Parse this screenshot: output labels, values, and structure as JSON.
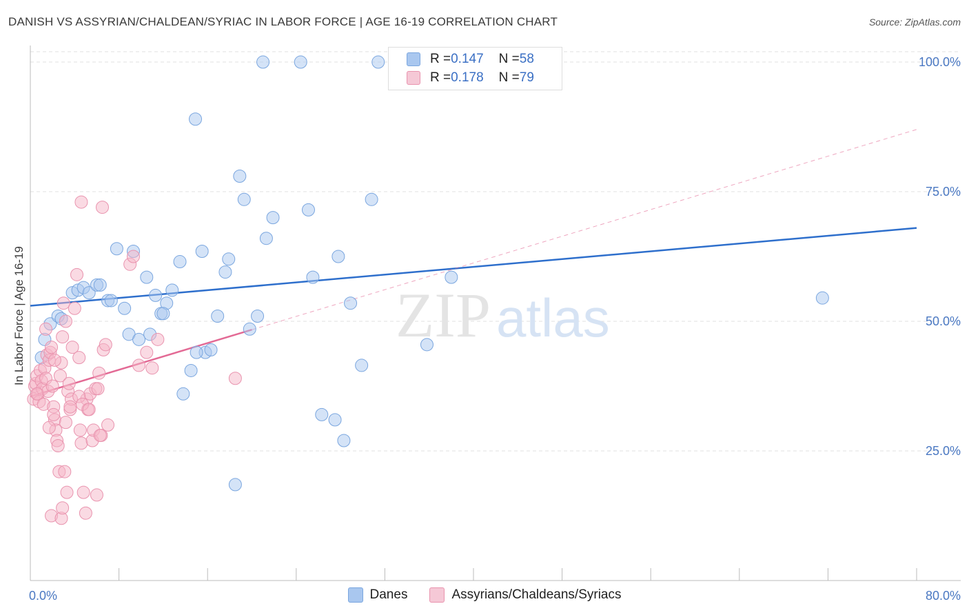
{
  "header": {
    "title": "DANISH VS ASSYRIAN/CHALDEAN/SYRIAC IN LABOR FORCE | AGE 16-19 CORRELATION CHART",
    "source": "Source: ZipAtlas.com"
  },
  "watermark": {
    "zip": "ZIP",
    "atlas": "atlas"
  },
  "legend_top": [
    {
      "r_label": "R = ",
      "r_value": "0.147",
      "n_label": "N = ",
      "n_value": "58",
      "color": "#a9c7ef"
    },
    {
      "r_label": "R = ",
      "r_value": "0.178",
      "n_label": "N = ",
      "n_value": "79",
      "color": "#f5b5c8"
    }
  ],
  "chart_data": {
    "type": "scatter",
    "title": "DANISH VS ASSYRIAN/CHALDEAN/SYRIAC IN LABOR FORCE | AGE 16-19 CORRELATION CHART",
    "xlabel": "",
    "ylabel": "In Labor Force | Age 16-19",
    "xlim": [
      0,
      80
    ],
    "ylim": [
      0,
      102
    ],
    "x_tick_labels": [
      "0.0%",
      "80.0%"
    ],
    "y_ticks": [
      25,
      50,
      75,
      100
    ],
    "y_tick_labels": [
      "25.0%",
      "50.0%",
      "75.0%",
      "100.0%"
    ],
    "grid": true,
    "legend_position": "top-center",
    "series": [
      {
        "name": "Danes",
        "color": "#a9c7ef",
        "stroke": "#7aa6df",
        "line_color": "#2e6fcc",
        "trend": {
          "x": [
            0,
            80
          ],
          "y": [
            53.0,
            68.0
          ],
          "dashed_extension": false
        },
        "points": [
          [
            1.0,
            43.0
          ],
          [
            1.3,
            46.5
          ],
          [
            1.8,
            49.5
          ],
          [
            2.5,
            51.0
          ],
          [
            2.8,
            50.5
          ],
          [
            3.8,
            55.5
          ],
          [
            4.3,
            56.0
          ],
          [
            4.8,
            56.5
          ],
          [
            5.3,
            55.5
          ],
          [
            6.0,
            57.0
          ],
          [
            6.3,
            57.0
          ],
          [
            7.0,
            54.0
          ],
          [
            7.3,
            54.0
          ],
          [
            7.8,
            64.0
          ],
          [
            8.5,
            52.5
          ],
          [
            8.9,
            47.5
          ],
          [
            9.3,
            63.5
          ],
          [
            9.8,
            46.5
          ],
          [
            10.5,
            58.5
          ],
          [
            10.8,
            47.5
          ],
          [
            11.3,
            55.0
          ],
          [
            11.8,
            51.5
          ],
          [
            12.3,
            53.5
          ],
          [
            12.8,
            56.0
          ],
          [
            13.5,
            61.5
          ],
          [
            13.8,
            36.0
          ],
          [
            14.5,
            40.5
          ],
          [
            14.9,
            89.0
          ],
          [
            15.5,
            63.5
          ],
          [
            15.8,
            44.0
          ],
          [
            16.3,
            44.5
          ],
          [
            16.9,
            51.0
          ],
          [
            17.6,
            59.5
          ],
          [
            17.9,
            62.0
          ],
          [
            18.5,
            18.5
          ],
          [
            18.9,
            78.0
          ],
          [
            19.3,
            73.5
          ],
          [
            19.8,
            48.5
          ],
          [
            20.5,
            51.0
          ],
          [
            21.3,
            66.0
          ],
          [
            21.9,
            70.0
          ],
          [
            21.0,
            100.0
          ],
          [
            24.4,
            100.0
          ],
          [
            25.1,
            71.5
          ],
          [
            25.5,
            58.5
          ],
          [
            26.3,
            32.0
          ],
          [
            27.5,
            31.0
          ],
          [
            27.8,
            62.5
          ],
          [
            28.3,
            27.0
          ],
          [
            28.9,
            53.5
          ],
          [
            29.9,
            41.5
          ],
          [
            30.8,
            73.5
          ],
          [
            31.4,
            100.0
          ],
          [
            35.8,
            45.5
          ],
          [
            38.0,
            58.5
          ],
          [
            71.5,
            54.5
          ],
          [
            15.0,
            44.0
          ],
          [
            12.0,
            51.5
          ]
        ]
      },
      {
        "name": "Assyrians/Chaldeans/Syriacs",
        "color": "#f5b5c8",
        "stroke": "#e993ae",
        "line_color": "#e36a95",
        "trend": {
          "x": [
            0,
            80
          ],
          "y": [
            35.5,
            87.0
          ],
          "solid_until_x": 20.0,
          "dashed_extension": true
        },
        "points": [
          [
            0.3,
            35.0
          ],
          [
            0.4,
            37.5
          ],
          [
            0.5,
            38.0
          ],
          [
            0.6,
            39.5
          ],
          [
            0.7,
            36.0
          ],
          [
            0.8,
            34.5
          ],
          [
            0.9,
            40.5
          ],
          [
            1.0,
            38.5
          ],
          [
            1.1,
            37.0
          ],
          [
            1.2,
            34.0
          ],
          [
            1.3,
            41.0
          ],
          [
            1.4,
            39.0
          ],
          [
            1.5,
            43.5
          ],
          [
            1.6,
            36.5
          ],
          [
            1.7,
            42.5
          ],
          [
            1.8,
            44.0
          ],
          [
            1.9,
            45.0
          ],
          [
            2.0,
            37.5
          ],
          [
            2.1,
            33.5
          ],
          [
            2.2,
            31.0
          ],
          [
            2.3,
            29.0
          ],
          [
            2.4,
            27.0
          ],
          [
            2.5,
            26.0
          ],
          [
            2.6,
            21.0
          ],
          [
            2.7,
            39.5
          ],
          [
            2.8,
            42.0
          ],
          [
            2.9,
            47.0
          ],
          [
            3.0,
            53.5
          ],
          [
            3.2,
            50.0
          ],
          [
            3.4,
            36.5
          ],
          [
            3.5,
            38.0
          ],
          [
            3.6,
            33.0
          ],
          [
            3.7,
            35.0
          ],
          [
            3.8,
            45.0
          ],
          [
            4.0,
            52.5
          ],
          [
            4.2,
            59.0
          ],
          [
            4.4,
            43.0
          ],
          [
            4.5,
            29.0
          ],
          [
            4.6,
            26.5
          ],
          [
            4.8,
            17.0
          ],
          [
            5.0,
            13.0
          ],
          [
            5.1,
            35.0
          ],
          [
            5.2,
            33.0
          ],
          [
            5.4,
            36.0
          ],
          [
            5.6,
            27.0
          ],
          [
            5.7,
            29.0
          ],
          [
            5.9,
            37.0
          ],
          [
            6.0,
            16.5
          ],
          [
            6.2,
            40.0
          ],
          [
            6.4,
            28.0
          ],
          [
            6.6,
            44.5
          ],
          [
            6.8,
            45.5
          ],
          [
            7.0,
            30.0
          ],
          [
            1.9,
            12.5
          ],
          [
            2.8,
            12.0
          ],
          [
            2.9,
            14.0
          ],
          [
            3.1,
            21.0
          ],
          [
            3.3,
            17.0
          ],
          [
            2.1,
            32.0
          ],
          [
            1.7,
            29.5
          ],
          [
            3.6,
            33.5
          ],
          [
            4.4,
            35.5
          ],
          [
            4.7,
            34.0
          ],
          [
            5.3,
            33.0
          ],
          [
            6.1,
            37.0
          ],
          [
            6.3,
            28.0
          ],
          [
            9.0,
            61.0
          ],
          [
            9.3,
            62.5
          ],
          [
            9.8,
            41.5
          ],
          [
            10.5,
            44.0
          ],
          [
            11.0,
            41.0
          ],
          [
            11.5,
            46.5
          ],
          [
            18.5,
            39.0
          ],
          [
            4.6,
            73.0
          ],
          [
            6.5,
            72.0
          ],
          [
            1.4,
            48.5
          ],
          [
            3.2,
            30.5
          ],
          [
            2.2,
            42.5
          ],
          [
            0.6,
            36.0
          ]
        ]
      }
    ]
  },
  "legend_bottom": [
    {
      "label": "Danes",
      "color": "#a9c7ef"
    },
    {
      "label": "Assyrians/Chaldeans/Syriacs",
      "color": "#f5b5c8"
    }
  ]
}
